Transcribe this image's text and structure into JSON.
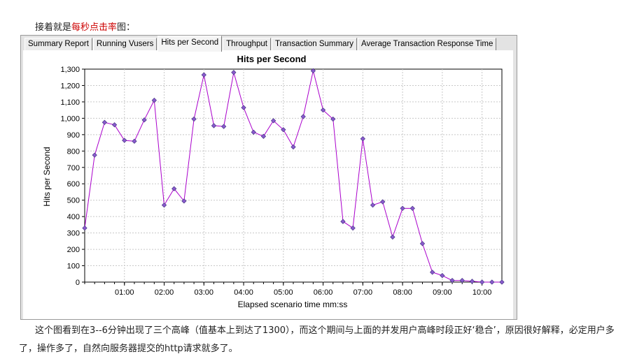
{
  "intro": {
    "prefix": "接着就是",
    "highlight": "每秒点击率",
    "suffix": "图："
  },
  "tabs": [
    {
      "label": "Summary Report",
      "active": false
    },
    {
      "label": "Running Vusers",
      "active": false
    },
    {
      "label": "Hits per Second",
      "active": true
    },
    {
      "label": "Throughput",
      "active": false
    },
    {
      "label": "Transaction Summary",
      "active": false
    },
    {
      "label": "Average Transaction Response Time",
      "active": false
    }
  ],
  "chart_data": {
    "type": "line",
    "title": "Hits per Second",
    "xlabel": "Elapsed scenario time mm:ss",
    "ylabel": "Hits per Second",
    "ylim": [
      0,
      1300
    ],
    "xlim": [
      "00:00",
      "10:30"
    ],
    "y_ticks": [
      "0",
      "100",
      "200",
      "300",
      "400",
      "500",
      "600",
      "700",
      "800",
      "900",
      "1,000",
      "1,100",
      "1,200",
      "1,300"
    ],
    "x_ticks": [
      "01:00",
      "02:00",
      "03:00",
      "04:00",
      "05:00",
      "06:00",
      "07:00",
      "08:00",
      "09:00",
      "10:00"
    ],
    "grid": true,
    "series": [
      {
        "color": "#aa00cc",
        "marker_color": "#8a5acd",
        "x": [
          "00:00",
          "00:15",
          "00:30",
          "00:45",
          "01:00",
          "01:15",
          "01:30",
          "01:45",
          "02:00",
          "02:15",
          "02:30",
          "02:45",
          "03:00",
          "03:15",
          "03:30",
          "03:45",
          "04:00",
          "04:15",
          "04:30",
          "04:45",
          "05:00",
          "05:15",
          "05:30",
          "05:45",
          "06:00",
          "06:15",
          "06:30",
          "06:45",
          "07:00",
          "07:15",
          "07:30",
          "07:45",
          "08:00",
          "08:15",
          "08:30",
          "08:45",
          "09:00",
          "09:15",
          "09:30",
          "09:45",
          "10:00",
          "10:15",
          "10:30"
        ],
        "values": [
          330,
          775,
          975,
          960,
          865,
          860,
          990,
          1110,
          470,
          570,
          495,
          995,
          1265,
          955,
          950,
          1280,
          1065,
          915,
          890,
          985,
          930,
          825,
          1010,
          1290,
          1050,
          995,
          370,
          330,
          875,
          470,
          490,
          275,
          450,
          450,
          235,
          60,
          40,
          10,
          10,
          5,
          0,
          0,
          0
        ]
      }
    ]
  },
  "outro": "这个图看到在3--6分钟出现了三个高峰（值基本上到达了1300），而这个期间与上面的并发用户高峰时段正好‘稳合’，原因很好解释，必定用户多了，操作多了，自然向服务器提交的http请求就多了。"
}
